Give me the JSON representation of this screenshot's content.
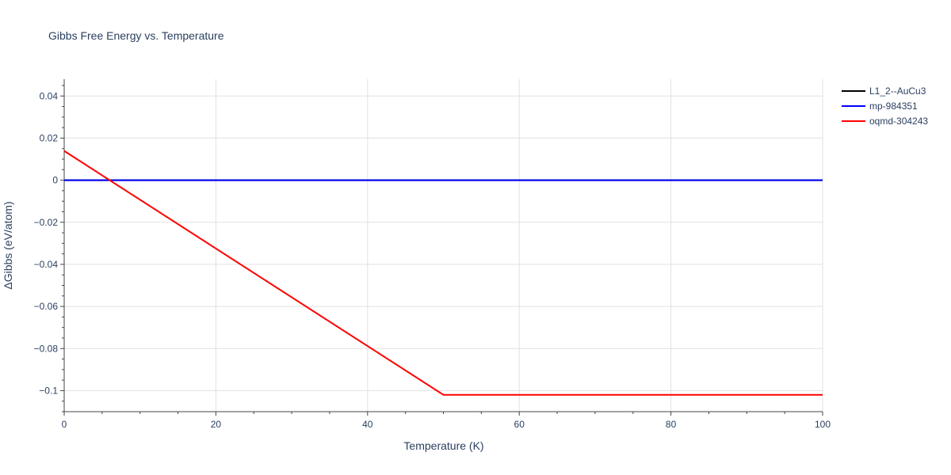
{
  "chart_data": {
    "type": "line",
    "title": "Gibbs Free Energy vs. Temperature",
    "xlabel": "Temperature (K)",
    "ylabel": "ΔGibbs (eV/atom)",
    "xlim": [
      0,
      100
    ],
    "ylim": [
      -0.11,
      0.048
    ],
    "x_ticks": [
      0,
      20,
      40,
      60,
      80,
      100
    ],
    "x_tick_labels": [
      "0",
      "20",
      "40",
      "60",
      "80",
      "100"
    ],
    "y_ticks": [
      0.04,
      0.02,
      0,
      -0.02,
      -0.04,
      -0.06,
      -0.08,
      -0.1
    ],
    "y_tick_labels": [
      "0.04",
      "0.02",
      "0",
      "−0.02",
      "−0.04",
      "−0.06",
      "−0.08",
      "−0.1"
    ],
    "grid": true,
    "legend_position": "top-right",
    "series": [
      {
        "name": "L1_2--AuCu3",
        "color": "#000000",
        "x": [
          0,
          100
        ],
        "y": [
          0,
          0
        ]
      },
      {
        "name": "mp-984351",
        "color": "#0000ff",
        "x": [
          0,
          100
        ],
        "y": [
          0,
          0
        ]
      },
      {
        "name": "oqmd-304243",
        "color": "#ff0000",
        "x": [
          0,
          50,
          100
        ],
        "y": [
          0.0139,
          -0.102,
          -0.102
        ]
      }
    ]
  }
}
